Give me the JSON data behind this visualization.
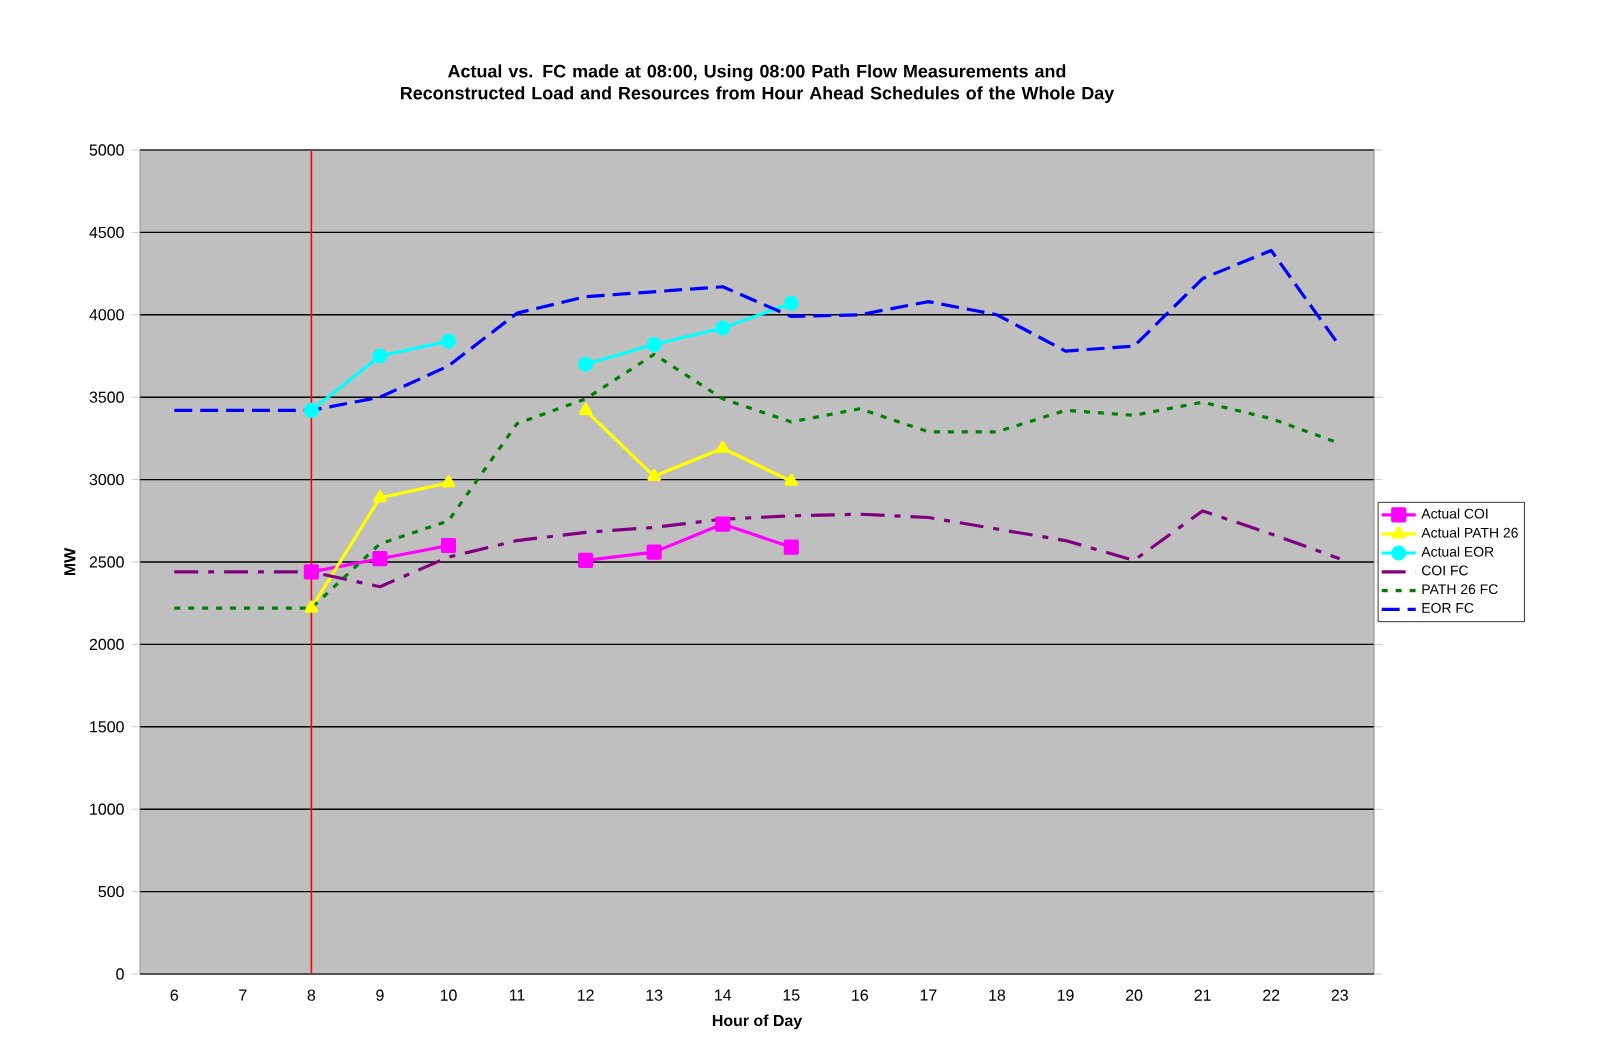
{
  "chart_data": {
    "type": "line",
    "title": "Actual vs. FC made at 08:00, Using 08:00 Path Flow Measurements and Reconstructed Load and Resources from Hour Ahead Schedules of the Whole Day",
    "xlabel": "Hour of Day",
    "ylabel": "MW",
    "x": [
      6,
      7,
      8,
      9,
      10,
      11,
      12,
      13,
      14,
      15,
      16,
      17,
      18,
      19,
      20,
      21,
      22,
      23
    ],
    "series": [
      {
        "name": "Actual COI",
        "color": "#ff00ff",
        "marker": "square",
        "line_style": "solid",
        "values": [
          null,
          null,
          2440,
          2520,
          2600,
          null,
          2510,
          2560,
          2730,
          2590,
          null,
          null,
          null,
          null,
          null,
          null,
          null,
          null
        ]
      },
      {
        "name": "Actual PATH 26",
        "color": "#ffff00",
        "marker": "triangle",
        "line_style": "solid",
        "values": [
          null,
          null,
          2220,
          2890,
          2980,
          null,
          3420,
          3020,
          3190,
          2990,
          null,
          null,
          null,
          null,
          null,
          null,
          null,
          null
        ]
      },
      {
        "name": "Actual EOR",
        "color": "#00ffff",
        "marker": "circle",
        "line_style": "solid",
        "values": [
          null,
          null,
          3420,
          3750,
          3840,
          null,
          3700,
          3820,
          3920,
          4070,
          null,
          null,
          null,
          null,
          null,
          null,
          null,
          null
        ]
      },
      {
        "name": "COI FC",
        "color": "#800080",
        "marker": "none",
        "line_style": "dashdot",
        "values": [
          2440,
          2440,
          2440,
          2350,
          2530,
          2630,
          2680,
          2710,
          2760,
          2780,
          2790,
          2770,
          2700,
          2630,
          2510,
          2810,
          2670,
          2520
        ]
      },
      {
        "name": "PATH 26 FC",
        "color": "#008000",
        "marker": "none",
        "line_style": "dotted",
        "values": [
          2220,
          2220,
          2220,
          2610,
          2750,
          3340,
          3490,
          3760,
          3490,
          3350,
          3430,
          3290,
          3290,
          3420,
          3390,
          3470,
          3370,
          3220
        ]
      },
      {
        "name": "EOR FC",
        "color": "#0000ff",
        "marker": "none",
        "line_style": "dashed",
        "values": [
          3420,
          3420,
          3420,
          3500,
          3690,
          4010,
          4110,
          4140,
          4170,
          3990,
          4000,
          4080,
          4000,
          3780,
          3810,
          4220,
          4390,
          3810
        ]
      }
    ],
    "xlim": [
      5.5,
      23.5
    ],
    "xticks": [
      6,
      7,
      8,
      9,
      10,
      11,
      12,
      13,
      14,
      15,
      16,
      17,
      18,
      19,
      20,
      21,
      22,
      23
    ],
    "ylim": [
      0,
      5000
    ],
    "yticks": [
      0,
      500,
      1000,
      1500,
      2000,
      2500,
      3000,
      3500,
      4000,
      4500,
      5000
    ],
    "grid": "y",
    "legend": "right",
    "ref_lines": [
      {
        "axis": "x",
        "value": 8,
        "color": "#ff0000"
      }
    ]
  }
}
